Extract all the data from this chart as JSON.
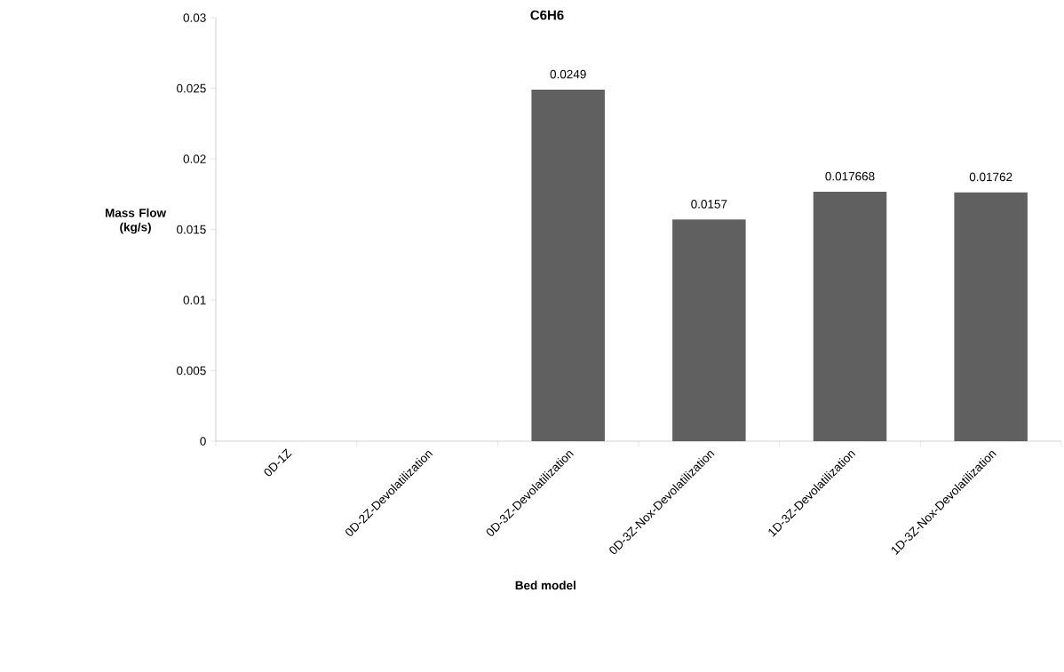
{
  "chart_data": {
    "type": "bar",
    "title": "C6H6",
    "xlabel": "Bed model",
    "ylabel": "Mass Flow (kg/s)",
    "categories": [
      "0D-1Z",
      "0D-2Z-Devolatilization",
      "0D-3Z-Devolatilization",
      "0D-3Z-Nox-Devolatilization",
      "1D-3Z-Devolatilization",
      "1D-3Z-Nox-Devolatilization"
    ],
    "values": [
      null,
      null,
      0.0249,
      0.0157,
      0.017668,
      0.01762
    ],
    "color": "#606060",
    "ylim": [
      0,
      0.03
    ],
    "yticks": [
      0,
      0.005,
      0.01,
      0.015,
      0.02,
      0.025,
      0.03
    ],
    "data_labels": true,
    "grid": false
  }
}
